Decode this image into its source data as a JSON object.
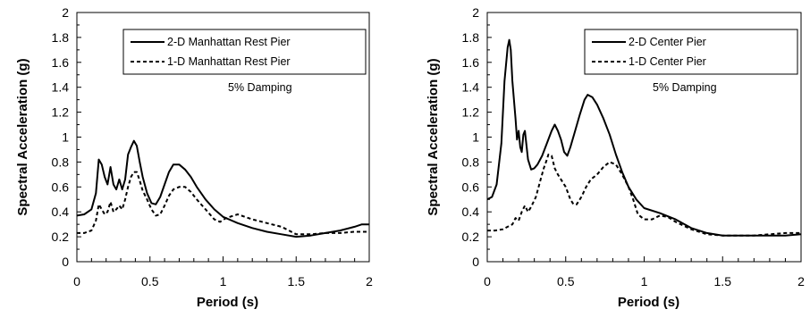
{
  "chart_data": [
    {
      "type": "line",
      "title": "",
      "xlabel": "Period (s)",
      "ylabel": "Spectral Acceleration (g)",
      "xlim": [
        0,
        2
      ],
      "ylim": [
        0,
        2
      ],
      "xticks": [
        "0",
        "0.5",
        "1",
        "1.5",
        "2"
      ],
      "yticks": [
        "0",
        "0.2",
        "0.4",
        "0.6",
        "0.8",
        "1",
        "1.2",
        "1.4",
        "1.6",
        "1.8",
        "2"
      ],
      "grid": false,
      "legend_position": "top-right",
      "annotation": "5% Damping",
      "series": [
        {
          "name": "2-D Manhattan Rest Pier",
          "style": "solid",
          "points": [
            [
              0,
              0.37
            ],
            [
              0.05,
              0.38
            ],
            [
              0.1,
              0.42
            ],
            [
              0.13,
              0.55
            ],
            [
              0.15,
              0.82
            ],
            [
              0.17,
              0.78
            ],
            [
              0.19,
              0.68
            ],
            [
              0.21,
              0.62
            ],
            [
              0.23,
              0.76
            ],
            [
              0.25,
              0.62
            ],
            [
              0.27,
              0.58
            ],
            [
              0.29,
              0.66
            ],
            [
              0.31,
              0.58
            ],
            [
              0.33,
              0.66
            ],
            [
              0.35,
              0.86
            ],
            [
              0.37,
              0.92
            ],
            [
              0.39,
              0.97
            ],
            [
              0.41,
              0.93
            ],
            [
              0.43,
              0.8
            ],
            [
              0.45,
              0.68
            ],
            [
              0.48,
              0.55
            ],
            [
              0.51,
              0.47
            ],
            [
              0.54,
              0.46
            ],
            [
              0.57,
              0.52
            ],
            [
              0.6,
              0.62
            ],
            [
              0.63,
              0.72
            ],
            [
              0.66,
              0.78
            ],
            [
              0.7,
              0.78
            ],
            [
              0.74,
              0.74
            ],
            [
              0.78,
              0.68
            ],
            [
              0.82,
              0.6
            ],
            [
              0.88,
              0.5
            ],
            [
              0.94,
              0.42
            ],
            [
              1.0,
              0.36
            ],
            [
              1.1,
              0.31
            ],
            [
              1.2,
              0.27
            ],
            [
              1.3,
              0.24
            ],
            [
              1.4,
              0.22
            ],
            [
              1.5,
              0.2
            ],
            [
              1.6,
              0.21
            ],
            [
              1.7,
              0.23
            ],
            [
              1.8,
              0.25
            ],
            [
              1.9,
              0.28
            ],
            [
              1.95,
              0.3
            ],
            [
              2.0,
              0.3
            ]
          ]
        },
        {
          "name": "1-D Manhattan Rest Pier",
          "style": "dashed",
          "points": [
            [
              0,
              0.23
            ],
            [
              0.05,
              0.23
            ],
            [
              0.1,
              0.25
            ],
            [
              0.13,
              0.33
            ],
            [
              0.15,
              0.46
            ],
            [
              0.17,
              0.42
            ],
            [
              0.19,
              0.38
            ],
            [
              0.21,
              0.4
            ],
            [
              0.23,
              0.48
            ],
            [
              0.25,
              0.4
            ],
            [
              0.27,
              0.42
            ],
            [
              0.29,
              0.45
            ],
            [
              0.31,
              0.42
            ],
            [
              0.33,
              0.5
            ],
            [
              0.35,
              0.6
            ],
            [
              0.37,
              0.68
            ],
            [
              0.39,
              0.72
            ],
            [
              0.41,
              0.72
            ],
            [
              0.43,
              0.65
            ],
            [
              0.45,
              0.57
            ],
            [
              0.48,
              0.5
            ],
            [
              0.51,
              0.42
            ],
            [
              0.54,
              0.37
            ],
            [
              0.57,
              0.38
            ],
            [
              0.6,
              0.45
            ],
            [
              0.63,
              0.53
            ],
            [
              0.66,
              0.58
            ],
            [
              0.7,
              0.6
            ],
            [
              0.74,
              0.6
            ],
            [
              0.78,
              0.56
            ],
            [
              0.82,
              0.5
            ],
            [
              0.88,
              0.42
            ],
            [
              0.94,
              0.34
            ],
            [
              0.98,
              0.32
            ],
            [
              1.02,
              0.35
            ],
            [
              1.1,
              0.38
            ],
            [
              1.2,
              0.34
            ],
            [
              1.3,
              0.31
            ],
            [
              1.4,
              0.28
            ],
            [
              1.5,
              0.22
            ],
            [
              1.6,
              0.22
            ],
            [
              1.7,
              0.23
            ],
            [
              1.8,
              0.23
            ],
            [
              1.9,
              0.24
            ],
            [
              2.0,
              0.24
            ]
          ]
        }
      ]
    },
    {
      "type": "line",
      "title": "",
      "xlabel": "Period (s)",
      "ylabel": "Spectral Acceleration (g)",
      "xlim": [
        0,
        2
      ],
      "ylim": [
        0,
        2
      ],
      "xticks": [
        "0",
        "0.5",
        "1",
        "1.5",
        "2"
      ],
      "yticks": [
        "0",
        "0.2",
        "0.4",
        "0.6",
        "0.8",
        "1",
        "1.2",
        "1.4",
        "1.6",
        "1.8",
        "2"
      ],
      "grid": false,
      "legend_position": "top-right",
      "annotation": "5% Damping",
      "series": [
        {
          "name": "2-D Center Pier",
          "style": "solid",
          "points": [
            [
              0,
              0.5
            ],
            [
              0.03,
              0.52
            ],
            [
              0.06,
              0.62
            ],
            [
              0.09,
              0.95
            ],
            [
              0.11,
              1.45
            ],
            [
              0.13,
              1.72
            ],
            [
              0.14,
              1.78
            ],
            [
              0.15,
              1.7
            ],
            [
              0.16,
              1.45
            ],
            [
              0.18,
              1.15
            ],
            [
              0.19,
              0.98
            ],
            [
              0.2,
              1.05
            ],
            [
              0.21,
              0.92
            ],
            [
              0.22,
              0.88
            ],
            [
              0.23,
              1.02
            ],
            [
              0.24,
              1.05
            ],
            [
              0.26,
              0.82
            ],
            [
              0.28,
              0.74
            ],
            [
              0.3,
              0.75
            ],
            [
              0.32,
              0.78
            ],
            [
              0.35,
              0.85
            ],
            [
              0.38,
              0.95
            ],
            [
              0.41,
              1.05
            ],
            [
              0.43,
              1.1
            ],
            [
              0.45,
              1.05
            ],
            [
              0.47,
              0.98
            ],
            [
              0.49,
              0.88
            ],
            [
              0.51,
              0.85
            ],
            [
              0.53,
              0.92
            ],
            [
              0.56,
              1.05
            ],
            [
              0.59,
              1.18
            ],
            [
              0.62,
              1.3
            ],
            [
              0.64,
              1.34
            ],
            [
              0.67,
              1.32
            ],
            [
              0.7,
              1.26
            ],
            [
              0.74,
              1.15
            ],
            [
              0.78,
              1.02
            ],
            [
              0.82,
              0.86
            ],
            [
              0.86,
              0.72
            ],
            [
              0.9,
              0.6
            ],
            [
              0.95,
              0.5
            ],
            [
              1.0,
              0.43
            ],
            [
              1.1,
              0.39
            ],
            [
              1.2,
              0.34
            ],
            [
              1.3,
              0.27
            ],
            [
              1.4,
              0.23
            ],
            [
              1.5,
              0.21
            ],
            [
              1.6,
              0.21
            ],
            [
              1.7,
              0.21
            ],
            [
              1.8,
              0.21
            ],
            [
              1.9,
              0.21
            ],
            [
              2.0,
              0.22
            ]
          ]
        },
        {
          "name": "1-D Center Pier",
          "style": "dashed",
          "points": [
            [
              0,
              0.25
            ],
            [
              0.05,
              0.25
            ],
            [
              0.1,
              0.26
            ],
            [
              0.13,
              0.28
            ],
            [
              0.16,
              0.3
            ],
            [
              0.18,
              0.35
            ],
            [
              0.2,
              0.33
            ],
            [
              0.22,
              0.4
            ],
            [
              0.24,
              0.45
            ],
            [
              0.26,
              0.4
            ],
            [
              0.28,
              0.44
            ],
            [
              0.31,
              0.52
            ],
            [
              0.34,
              0.66
            ],
            [
              0.36,
              0.75
            ],
            [
              0.38,
              0.82
            ],
            [
              0.39,
              0.86
            ],
            [
              0.41,
              0.85
            ],
            [
              0.43,
              0.75
            ],
            [
              0.45,
              0.7
            ],
            [
              0.48,
              0.64
            ],
            [
              0.5,
              0.6
            ],
            [
              0.53,
              0.5
            ],
            [
              0.55,
              0.46
            ],
            [
              0.57,
              0.46
            ],
            [
              0.6,
              0.52
            ],
            [
              0.63,
              0.6
            ],
            [
              0.66,
              0.66
            ],
            [
              0.7,
              0.7
            ],
            [
              0.74,
              0.76
            ],
            [
              0.78,
              0.8
            ],
            [
              0.82,
              0.78
            ],
            [
              0.86,
              0.7
            ],
            [
              0.9,
              0.6
            ],
            [
              0.93,
              0.5
            ],
            [
              0.96,
              0.38
            ],
            [
              1.0,
              0.34
            ],
            [
              1.05,
              0.34
            ],
            [
              1.1,
              0.37
            ],
            [
              1.15,
              0.36
            ],
            [
              1.2,
              0.32
            ],
            [
              1.3,
              0.26
            ],
            [
              1.4,
              0.22
            ],
            [
              1.5,
              0.21
            ],
            [
              1.6,
              0.21
            ],
            [
              1.7,
              0.21
            ],
            [
              1.8,
              0.22
            ],
            [
              1.9,
              0.23
            ],
            [
              2.0,
              0.23
            ]
          ]
        }
      ]
    }
  ]
}
